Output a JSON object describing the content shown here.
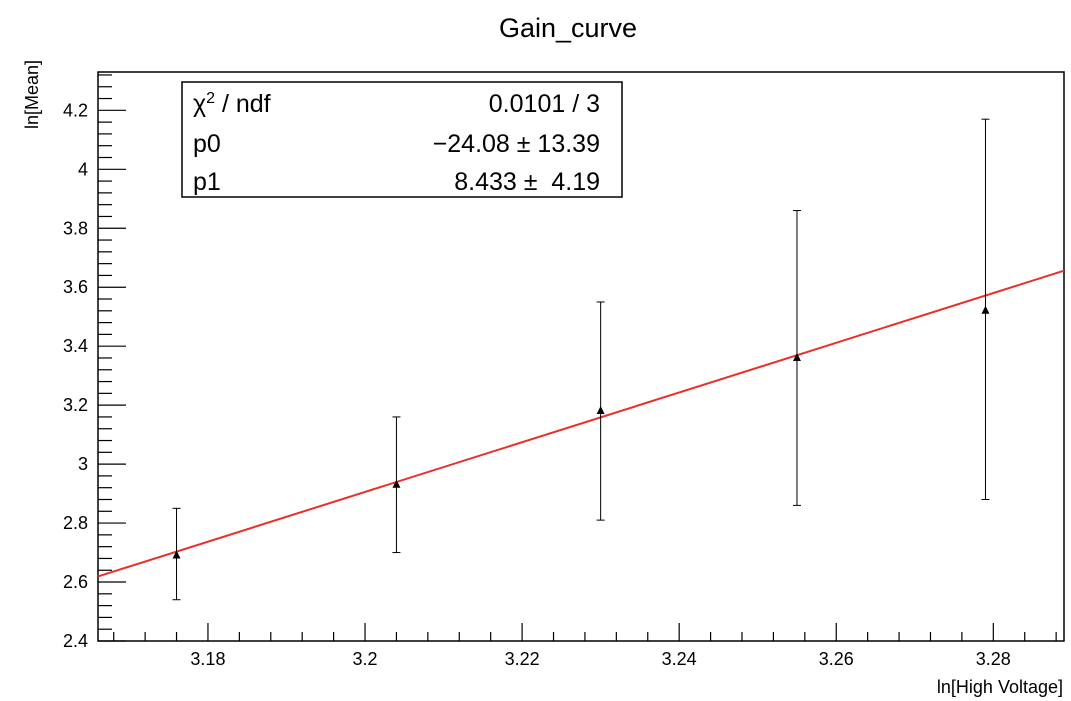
{
  "chart_data": {
    "type": "scatter",
    "title": "Gain_curve",
    "xlabel": "ln[High Voltage]",
    "ylabel": "ln[Mean]",
    "xlim": [
      3.166,
      3.289
    ],
    "ylim": [
      2.4,
      4.33
    ],
    "x_ticks": [
      3.18,
      3.2,
      3.22,
      3.24,
      3.26,
      3.28
    ],
    "x_tick_labels": [
      "3.18",
      "3.2",
      "3.22",
      "3.24",
      "3.26",
      "3.28"
    ],
    "y_ticks": [
      2.4,
      2.6,
      2.8,
      3.0,
      3.2,
      3.4,
      3.6,
      3.8,
      4.0,
      4.2
    ],
    "y_tick_labels": [
      "2.4",
      "2.6",
      "2.8",
      "3",
      "3.2",
      "3.4",
      "3.6",
      "3.8",
      "4",
      "4.2"
    ],
    "grid": false,
    "points": [
      {
        "x": 3.176,
        "y": 2.69,
        "y_low": 2.54,
        "y_high": 2.85
      },
      {
        "x": 3.204,
        "y": 2.93,
        "y_low": 2.7,
        "y_high": 3.16
      },
      {
        "x": 3.23,
        "y": 3.18,
        "y_low": 2.81,
        "y_high": 3.55
      },
      {
        "x": 3.255,
        "y": 3.36,
        "y_low": 2.86,
        "y_high": 3.86
      },
      {
        "x": 3.279,
        "y": 3.52,
        "y_low": 2.88,
        "y_high": 4.17
      }
    ],
    "fit": {
      "function": "p0 + p1*x",
      "p0": -24.08,
      "p1": 8.433,
      "color": "#e8302a"
    },
    "stats_box": {
      "placement": "top-left",
      "rows": [
        {
          "label_base": "χ",
          "label_sup": "2",
          "label_rest": " / ndf",
          "value": "0.0101 / 3"
        },
        {
          "label": "p0",
          "value": "−24.08 ± 13.39"
        },
        {
          "label": "p1",
          "value": "8.433 ±  4.19"
        }
      ]
    },
    "colors": {
      "points": "#000000",
      "errors": "#000000",
      "fit_line": "#e8302a",
      "frame": "#000000"
    }
  }
}
